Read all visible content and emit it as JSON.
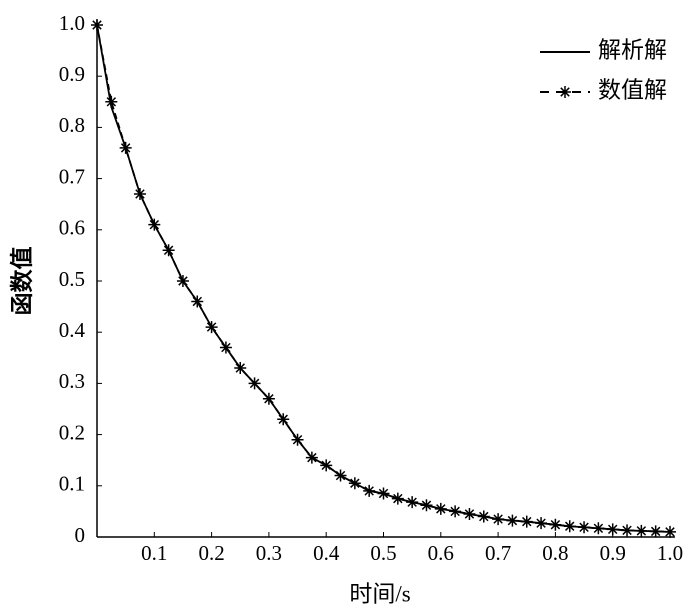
{
  "chart_data": {
    "type": "line",
    "xlabel": "时间/s",
    "ylabel": "函数值",
    "x": [
      0,
      0.025,
      0.05,
      0.075,
      0.1,
      0.125,
      0.15,
      0.175,
      0.2,
      0.225,
      0.25,
      0.275,
      0.3,
      0.325,
      0.35,
      0.375,
      0.4,
      0.425,
      0.45,
      0.475,
      0.5,
      0.525,
      0.55,
      0.575,
      0.6,
      0.625,
      0.65,
      0.675,
      0.7,
      0.725,
      0.75,
      0.775,
      0.8,
      0.825,
      0.85,
      0.875,
      0.9,
      0.925,
      0.95,
      0.975,
      1.0
    ],
    "series": [
      {
        "name": "解析解",
        "color": "#000000",
        "style": "solid",
        "values": [
          1.0,
          0.84,
          0.76,
          0.67,
          0.61,
          0.56,
          0.5,
          0.46,
          0.41,
          0.37,
          0.33,
          0.3,
          0.27,
          0.23,
          0.19,
          0.155,
          0.14,
          0.12,
          0.105,
          0.09,
          0.085,
          0.075,
          0.068,
          0.062,
          0.055,
          0.05,
          0.045,
          0.04,
          0.035,
          0.032,
          0.03,
          0.027,
          0.024,
          0.021,
          0.019,
          0.017,
          0.015,
          0.013,
          0.012,
          0.011,
          0.01
        ]
      },
      {
        "name": "数值解",
        "color": "#000000",
        "style": "dashed-star",
        "values": [
          1.0,
          0.85,
          0.76,
          0.67,
          0.61,
          0.56,
          0.5,
          0.46,
          0.41,
          0.37,
          0.33,
          0.3,
          0.27,
          0.23,
          0.19,
          0.155,
          0.14,
          0.12,
          0.105,
          0.09,
          0.085,
          0.075,
          0.068,
          0.062,
          0.055,
          0.05,
          0.045,
          0.04,
          0.035,
          0.032,
          0.03,
          0.027,
          0.024,
          0.021,
          0.019,
          0.017,
          0.015,
          0.013,
          0.012,
          0.011,
          0.01
        ]
      }
    ],
    "xlim": [
      0,
      1.0
    ],
    "xticks": [
      0.1,
      0.2,
      0.3,
      0.4,
      0.5,
      0.6,
      0.7,
      0.8,
      0.9,
      {
        "value": 1.0,
        "label": "1.0"
      }
    ],
    "ylim": [
      0,
      1.0
    ],
    "yticks": [
      0,
      0.1,
      0.2,
      0.3,
      0.4,
      0.5,
      0.6,
      0.7,
      0.8,
      0.9,
      {
        "value": 1.0,
        "label": "1.0"
      }
    ],
    "legend": "upper right"
  }
}
